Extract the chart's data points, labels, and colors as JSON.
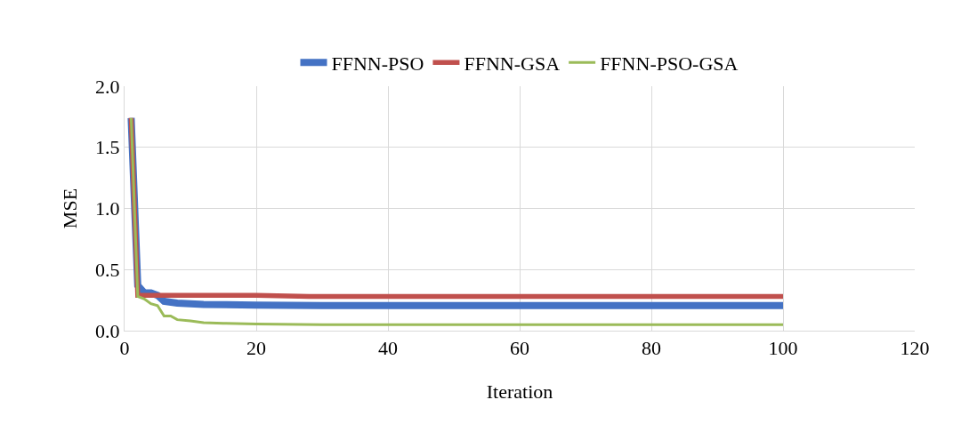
{
  "chart_data": {
    "type": "line",
    "xlabel": "Iteration",
    "ylabel": "MSE",
    "xlim": [
      0,
      120
    ],
    "xticks": [
      0,
      20,
      40,
      60,
      80,
      100,
      120
    ],
    "ylim": [
      0,
      2
    ],
    "yticks": [
      {
        "value": 0,
        "label": "0.0"
      },
      {
        "value": 0.5,
        "label": "0.5"
      },
      {
        "value": 1,
        "label": "1.0"
      },
      {
        "value": 1.5,
        "label": "1.5"
      },
      {
        "value": 2,
        "label": "2.0"
      }
    ],
    "grid": true,
    "legend": "top",
    "marker": "none",
    "line_style": "solid",
    "series": [
      {
        "name": "FFNN-PSO",
        "color": "#4472c4",
        "x": [
          1,
          2,
          3,
          4,
          5,
          6,
          8,
          12,
          20,
          30,
          100
        ],
        "values": [
          1.74,
          0.37,
          0.31,
          0.31,
          0.29,
          0.24,
          0.225,
          0.215,
          0.21,
          0.205,
          0.205
        ]
      },
      {
        "name": "FFNN-GSA",
        "color": "#c0504d",
        "x": [
          1,
          2,
          10,
          20,
          28,
          100
        ],
        "values": [
          1.74,
          0.29,
          0.29,
          0.29,
          0.28,
          0.28
        ]
      },
      {
        "name": "FFNN-PSO-GSA",
        "color": "#9bbb59",
        "x": [
          1,
          2,
          3,
          4,
          5,
          6,
          7,
          8,
          10,
          12,
          15,
          20,
          30,
          100
        ],
        "values": [
          1.74,
          0.28,
          0.26,
          0.22,
          0.205,
          0.12,
          0.12,
          0.09,
          0.08,
          0.065,
          0.06,
          0.055,
          0.05,
          0.05
        ]
      }
    ]
  }
}
